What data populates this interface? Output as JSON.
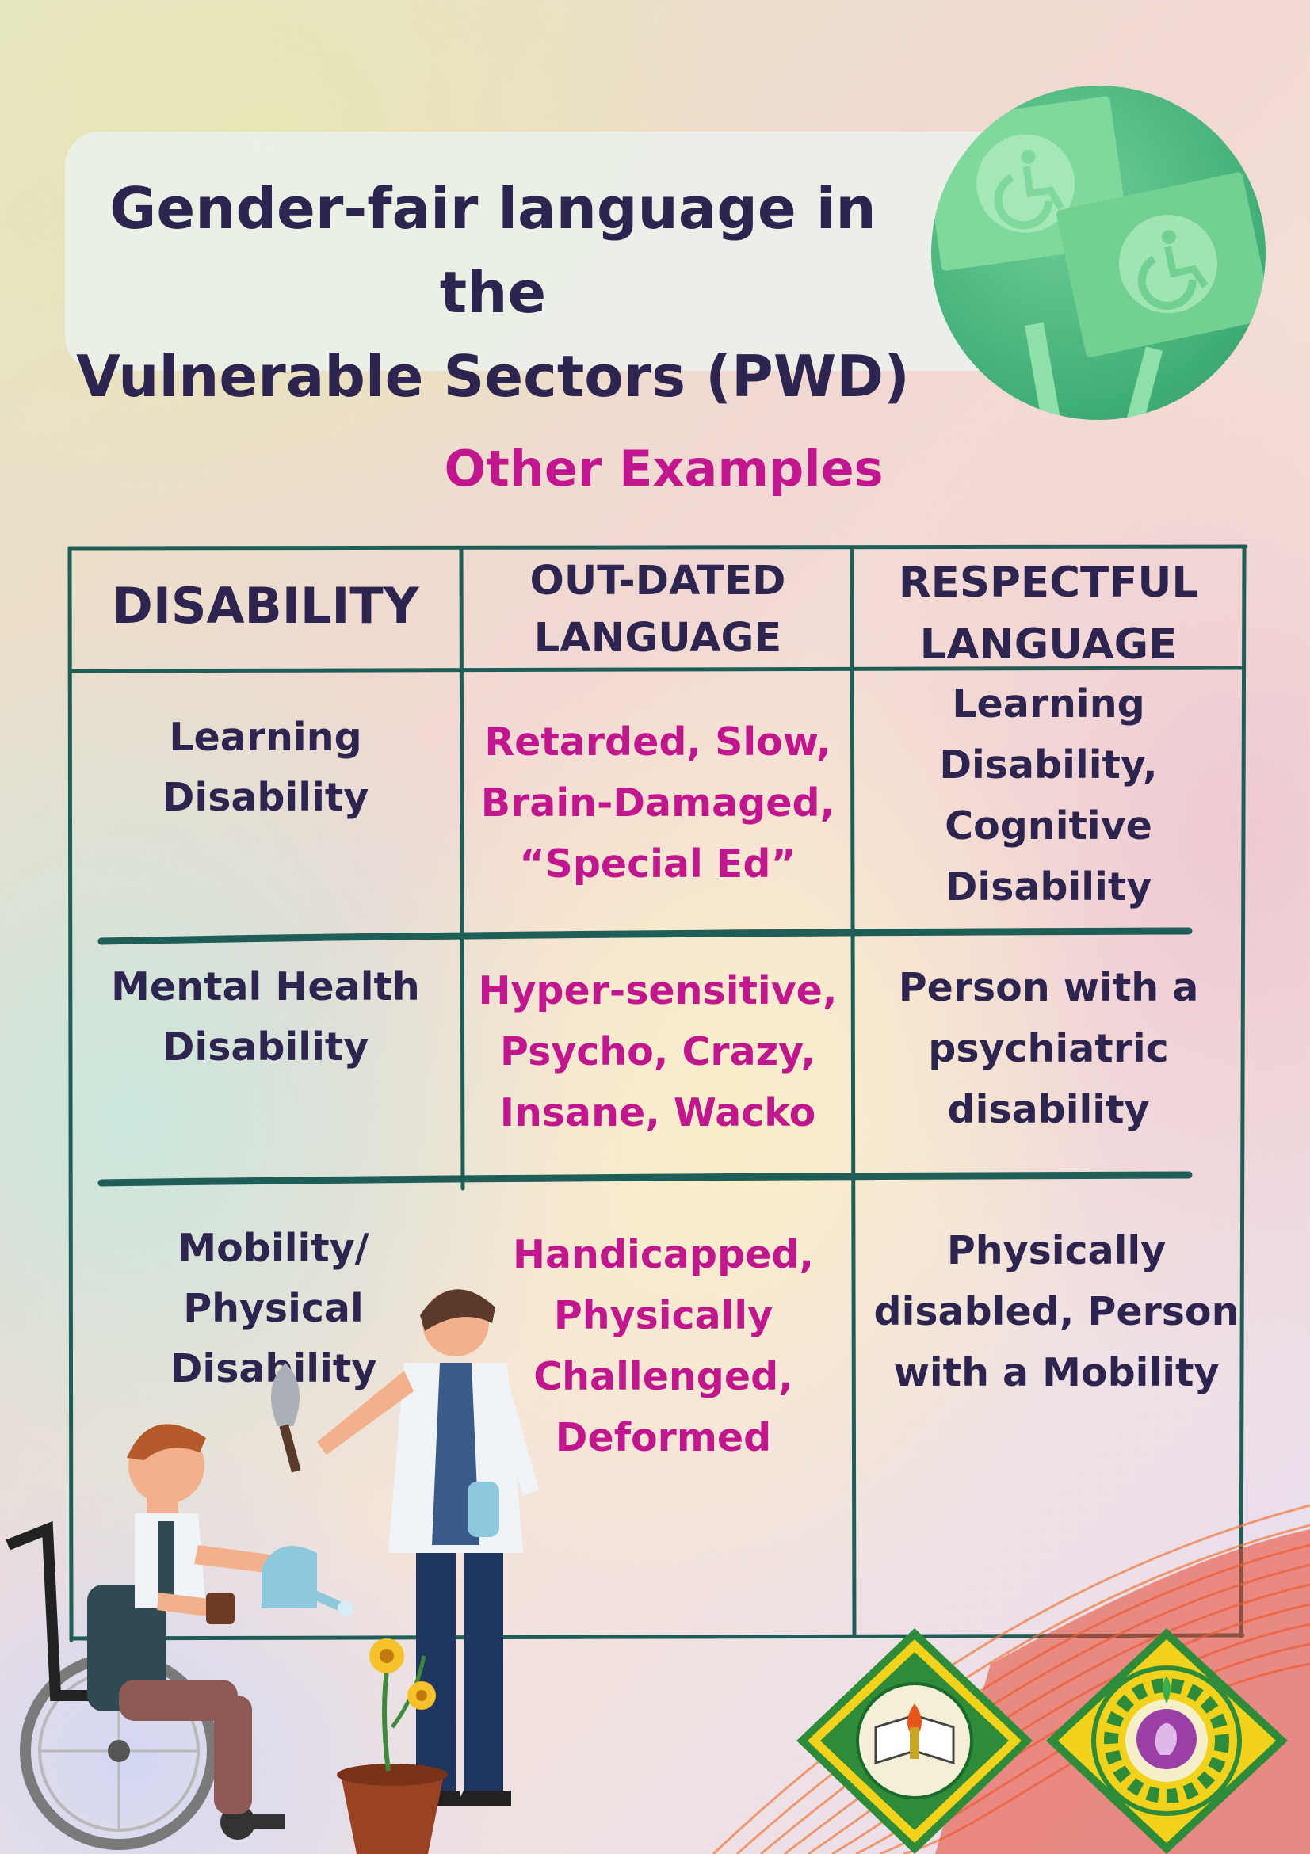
{
  "title": {
    "line1": "Gender-fair language in the",
    "line2": "Vulnerable Sectors (PWD)"
  },
  "subtitle": "Other Examples",
  "table": {
    "headers": {
      "disability": "DISABILITY",
      "outdated_line1": "OUT-DATED",
      "outdated_line2": "LANGUAGE",
      "respectful_line1": "RESPECTFUL",
      "respectful_line2": "LANGUAGE"
    },
    "rows": [
      {
        "disability": [
          "Learning",
          "Disability"
        ],
        "outdated": [
          "Retarded, Slow,",
          "Brain-Damaged,",
          "“Special Ed”"
        ],
        "respectful": [
          "Learning",
          "Disability,",
          "Cognitive",
          "Disability"
        ]
      },
      {
        "disability": [
          "Mental Health",
          "Disability"
        ],
        "outdated": [
          "Hyper-sensitive,",
          "Psycho, Crazy,",
          "Insane, Wacko"
        ],
        "respectful": [
          "Person with a",
          "psychiatric",
          "disability"
        ]
      },
      {
        "disability": [
          "Mobility/",
          "Physical",
          "Disability"
        ],
        "outdated": [
          "Handicapped,",
          "Physically",
          "Challenged,",
          "Deformed"
        ],
        "respectful": [
          "Physically",
          "disabled, Person",
          "with a Mobility"
        ]
      }
    ]
  },
  "colors": {
    "title_text": "#2d2550",
    "accent_magenta": "#c1168e",
    "table_line": "#1f5e57",
    "badge_green": "#3fae75"
  },
  "icons": {
    "badge": "wheelchair-sign-icon",
    "illustration": "wheelchair-gardening-illustration",
    "logo1": "cavite-state-university-seal",
    "logo2": "gender-and-development-seal"
  }
}
